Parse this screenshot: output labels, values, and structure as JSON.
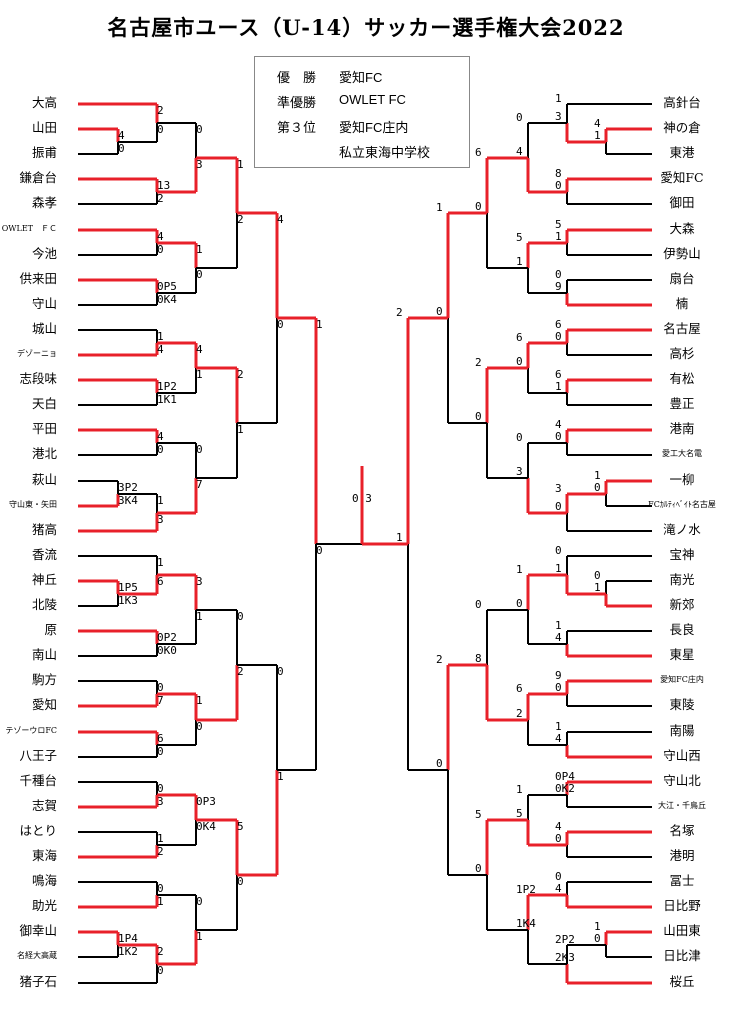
{
  "title": "名古屋市ユース（U-14）サッカー選手権大会2022",
  "results": [
    {
      "label": "優　勝",
      "value": "愛知FC"
    },
    {
      "label": "準優勝",
      "value": "OWLET FC"
    },
    {
      "label": "第３位",
      "value": "愛知FC庄内"
    },
    {
      "label": "",
      "value": "私立東海中学校"
    }
  ],
  "colors": {
    "winner": "#e8202a",
    "line": "#000000"
  },
  "left_teams": [
    "大高",
    "山田",
    "振甫",
    "鎌倉台",
    "森孝",
    "OWLET　ＦＣ",
    "今池",
    "供来田",
    "守山",
    "城山",
    "デゾーニョ",
    "志段味",
    "天白",
    "平田",
    "港北",
    "萩山",
    "守山東・矢田",
    "猪高",
    "香流",
    "神丘",
    "北陵",
    "原",
    "南山",
    "駒方",
    "愛知",
    "テゾーウロFC",
    "八王子",
    "千種台",
    "志賀",
    "はとり",
    "東海",
    "鳴海",
    "助光",
    "御幸山",
    "名経大高蔵",
    "猪子石"
  ],
  "right_teams": [
    "高針台",
    "神の倉",
    "東港",
    "愛知FC",
    "御田",
    "大森",
    "伊勢山",
    "扇台",
    "楠",
    "名古屋",
    "高杉",
    "有松",
    "豊正",
    "港南",
    "愛工大名電",
    "一柳",
    "FCｶﾙﾃｨﾍﾞｲﾄ名古屋",
    "滝ノ水",
    "宝神",
    "南光",
    "新郊",
    "長良",
    "東星",
    "愛知FC庄内",
    "東陵",
    "南陽",
    "守山西",
    "守山北",
    "大江・千鳥丘",
    "名塚",
    "港明",
    "冨士",
    "日比野",
    "山田東",
    "日比津",
    "桜丘"
  ],
  "final_score": "0-3"
}
